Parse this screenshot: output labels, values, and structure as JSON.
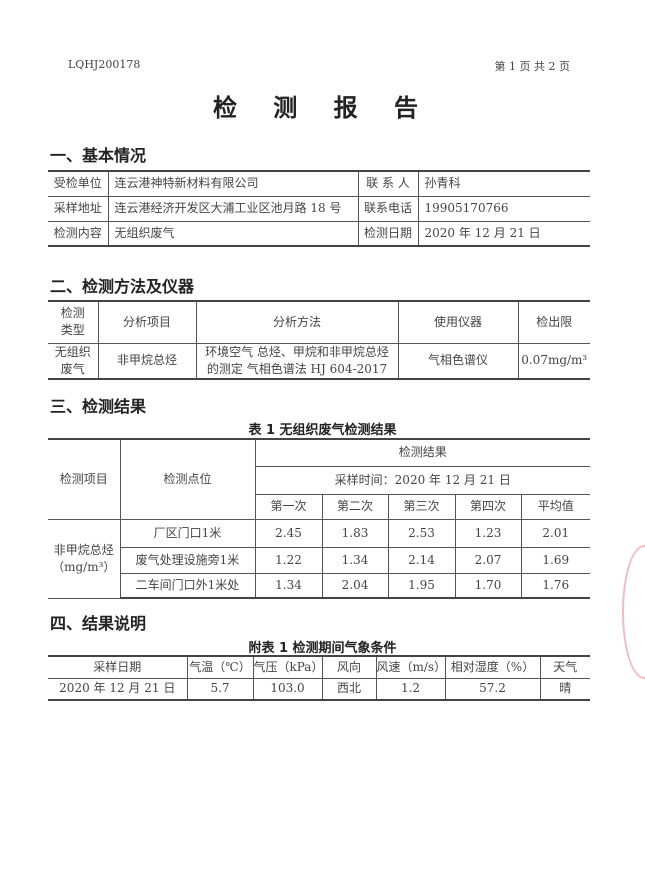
{
  "header": {
    "report_no": "LQHJ200178",
    "page_info": "第 1 页 共 2 页"
  },
  "title": "检 测 报 告",
  "sections": {
    "basic": "一、基本情况",
    "method": "二、检测方法及仪器",
    "results": "三、检测结果",
    "notes": "四、结果说明"
  },
  "basic_info": {
    "client_label": "受检单位",
    "client": "连云港神特新材料有限公司",
    "contact_label": "联 系 人",
    "contact": "孙青科",
    "address_label": "采样地址",
    "address": "连云港经济开发区大浦工业区池月路 18 号",
    "phone_label": "联系电话",
    "phone": "19905170766",
    "content_label": "检测内容",
    "content": "无组织废气",
    "date_label": "检测日期",
    "date": "2020 年 12 月 21 日"
  },
  "method_table": {
    "headers": [
      "检测类型",
      "分析项目",
      "分析方法",
      "使用仪器",
      "检出限"
    ],
    "row": [
      "无组织废气",
      "非甲烷总烃",
      "环境空气 总烃、甲烷和非甲烷总烃的测定 气相色谱法 HJ 604-2017",
      "气相色谱仪",
      "0.07mg/m³"
    ]
  },
  "results_table": {
    "caption": "表 1  无组织废气检测结果",
    "h_item": "检测项目",
    "h_point": "检测点位",
    "h_result": "检测结果",
    "h_time": "采样时间：2020 年 12 月 21 日",
    "h_runs": [
      "第一次",
      "第二次",
      "第三次",
      "第四次",
      "平均值"
    ],
    "item": "非甲烷总烃",
    "unit": "（mg/m³）",
    "rows": [
      {
        "point": "厂区门口1米",
        "values": [
          "2.45",
          "1.83",
          "2.53",
          "1.23",
          "2.01"
        ]
      },
      {
        "point": "废气处理设施旁1米",
        "values": [
          "1.22",
          "1.34",
          "2.14",
          "2.07",
          "1.69"
        ]
      },
      {
        "point": "二车间门口外1米处",
        "values": [
          "1.34",
          "2.04",
          "1.95",
          "1.70",
          "1.76"
        ]
      }
    ]
  },
  "weather_table": {
    "caption": "附表 1  检测期间气象条件",
    "headers": [
      "采样日期",
      "气温（℃）",
      "气压（kPa）",
      "风向",
      "风速（m/s）",
      "相对湿度（%）",
      "天气"
    ],
    "row": [
      "2020 年 12 月 21 日",
      "5.7",
      "103.0",
      "西北",
      "1.2",
      "57.2",
      "晴"
    ]
  }
}
